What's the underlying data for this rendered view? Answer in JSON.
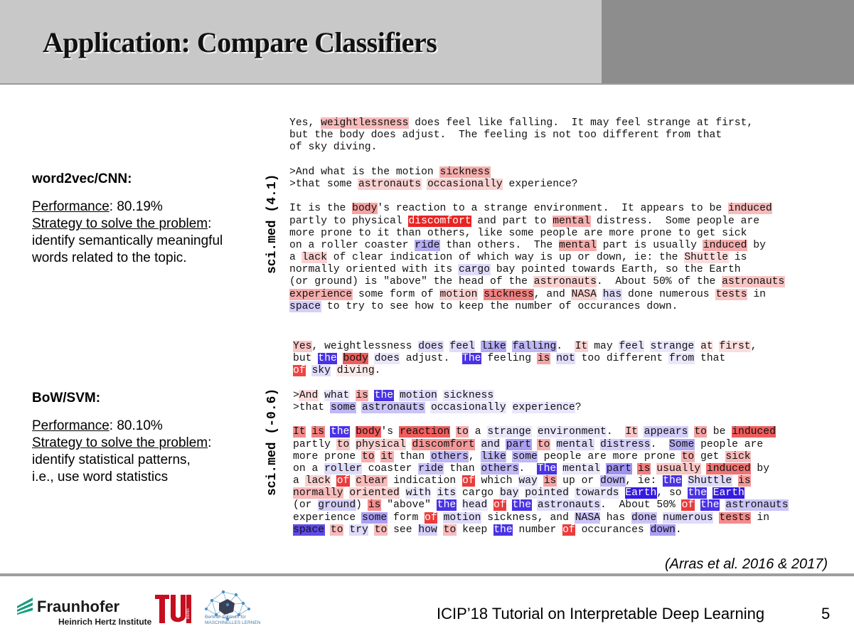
{
  "slide": {
    "title": "Application: Compare Classifiers",
    "page_number": "5",
    "footer_text": "ICIP’18 Tutorial on Interpretable Deep Learning",
    "citation": "(Arras et al. 2016 & 2017)"
  },
  "logos": {
    "fraunhofer_name": "Fraunhofer",
    "fraunhofer_sub": "Heinrich Hertz Institute",
    "tu_small": "berlin",
    "bzml_line1": "Berliner Zentrum für",
    "bzml_line2": "MASCHINELLES LERNEN"
  },
  "colors": {
    "header_bg": "#c8c8c8",
    "header_accent": "#8d8d8d",
    "positive_relevance": "#e81818",
    "negative_relevance": "#2a0ee0",
    "fraunhofer_green": "#179c7d",
    "tu_red": "#c50e1f"
  },
  "models": [
    {
      "name": "word2vec/CNN",
      "performance_label": "Performance",
      "performance_value": "80.19%",
      "strategy_label": "Strategy to solve the problem",
      "strategy_lines": [
        "identify semantically meaningful",
        "words related to the topic."
      ],
      "rotated_label": "sci.med (4.1)"
    },
    {
      "name": "BoW/SVM",
      "performance_label": "Performance",
      "performance_value": "80.10%",
      "strategy_label": "Strategy to solve the problem",
      "strategy_lines": [
        "identify statistical patterns,",
        "i.e., use word statistics"
      ],
      "rotated_label": "sci.med (-0.6)"
    }
  ],
  "heatmaps": [
    {
      "lines": [
        "Yes, [weightlessness|0.3] does feel like falling.  It may feel strange at first,",
        "but the body does adjust.  The feeling is not too different from that",
        "of sky diving.",
        "",
        ">And what is the motion [sickness|0.35]",
        ">that some [astronauts|0.2] [occasionally|0.2] experience?",
        "",
        "It is the [body|0.4]'s reaction to a strange environment.  It appears to be [induced|0.3]",
        "partly to physical [discomfort|0.95] and part to [mental|0.35] distress.  Some people are",
        "more prone to it than others, like some people are more prone to get sick",
        "on a roller coaster [ride|-0.35] than others.  The [mental|0.35] part is usually [induced|0.35] by",
        "a [lack|0.2] of clear indication of which way is up or down, ie: the [Shuttle|0.15] is",
        "normally oriented with its [cargo|-0.15] bay pointed towards Earth, so the Earth",
        "(or ground) is \"above\" the head of the [astronauts|0.2].  About 50% of the [astronauts|0.25]",
        "[experience|0.35] some form of [motion|0.2] [sickness|0.55], and [NASA|0.2] [has|-0.15] done numerous [tests|0.25] in",
        "[space|-0.2] to try to see how to keep the number of occurances down."
      ]
    },
    {
      "lines": [
        "[Yes|0.25], weightlessness [does|-0.15] [feel|-0.15] [like|-0.35] [falling|-0.3].  [It|0.2] may [feel|-0.1] [strange|-0.1] [at|0.1] [first|0.15],",
        "but [the|-0.85] [body|0.7] [does|-0.1] adjust.  [The|-0.85] feeling [is|0.4] [not|-0.15] too different [from|-0.1] that",
        "[of|0.8] [sky|-0.15] [diving|0.1].",
        "",
        ">[And|0.15] [what|-0.1] [is|0.35] [the|-0.85] [motion|-0.15] [sickness|-0.1]",
        ">that [some|-0.3] [astronauts|-0.25] [occasionally|-0.1] [experience|-0.1]?",
        "",
        "[It|0.5] [is|0.55] [the|-0.85] [body|0.7]'s [reaction|0.7] [to|0.35] a [strange|-0.1] [environment|-0.1].  [It|0.25] [appears|-0.2] [to|0.4] be [induced|0.7]",
        "partly [to|0.25] [physical|0.2] [discomfort|0.45] [and|-0.15] [part|-0.4] [to|0.35] [mental|-0.15] [distress|-0.2].  [Some|-0.35] people are",
        "more prone [to|0.35] [it|0.35] than [others|-0.3], [like|-0.3] [some|-0.3] people are more prone [to|0.35] get [sick|0.3]",
        "on a [roller|-0.15] coaster [ride|-0.25] than [others|-0.3].  [The|-0.85] [mental|-0.1] [part|-0.45] [is|0.55] [usually|0.25] [induced|0.6] by",
        "a [lack|0.2] [of|0.85] [clear|0.3] indication [of|0.85] which [way|-0.1] [is|0.4] up or [down|-0.3], ie: [the|-0.85] [Shuttle|-0.15] [is|0.45]",
        "[normally|0.3] [oriented|0.2] [with|-0.1] [its|-0.1] cargo [bay|-0.1] [pointed|-0.1] [towards|-0.1] [Earth|-0.95], so [the|-0.85] [Earth|-0.95]",
        "(or [ground|-0.2]) [is|0.5] \"above\" [the|-0.85] [head|-0.1] [of|0.85] [the|-0.85] [astronauts|-0.15].  About 50% [of|0.85] [the|-0.85] [astronauts|-0.25]",
        "experience [some|-0.4] form [of|0.85] [motion|-0.15] sickness, and [NASA|-0.25] has [done|-0.25] [numerous|-0.15] [tests|0.5] in",
        "[space|-0.75] [to|0.3] [try|-0.15] [to|0.3] see [how|-0.2] [to|0.3] keep [the|-0.85] number [of|0.85] occurances [down|-0.4]."
      ]
    }
  ]
}
